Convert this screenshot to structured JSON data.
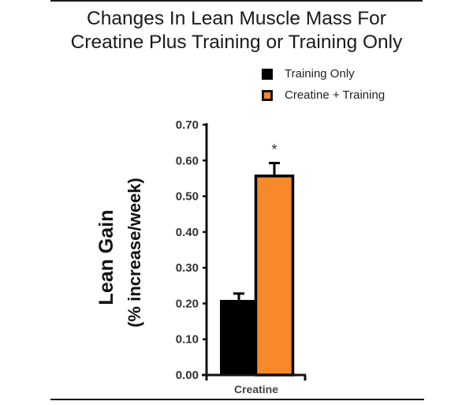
{
  "title_lines": [
    "Changes In Lean Muscle Mass For",
    "Creatine Plus Training or Training Only"
  ],
  "legend": [
    {
      "label": "Training Only",
      "color": "#000000"
    },
    {
      "label": "Creatine + Training",
      "color": "#F7892A"
    }
  ],
  "colors": {
    "training_only": "#000000",
    "creatine_training": "#F7892A",
    "axis": "#111111"
  },
  "chart_data": {
    "type": "bar",
    "title": "Changes In Lean Muscle Mass For Creatine Plus Training or Training Only",
    "categories": [
      "Creatine"
    ],
    "series": [
      {
        "name": "Training Only",
        "values": [
          0.21
        ],
        "error": [
          0.02
        ],
        "color": "#000000"
      },
      {
        "name": "Creatine + Training",
        "values": [
          0.56
        ],
        "error": [
          0.035
        ],
        "color": "#F7892A"
      }
    ],
    "xlabel": "",
    "ylabel": "Lean Gain (% increase/week)",
    "ylabel_lines": [
      "Lean Gain",
      "(% increase/week)"
    ],
    "ylim": [
      0,
      0.7
    ],
    "yticks": [
      "0.00",
      "0.10",
      "0.20",
      "0.30",
      "0.40",
      "0.50",
      "0.60",
      "0.70"
    ],
    "annotations": [
      {
        "text": "*",
        "target": "Creatine + Training"
      }
    ],
    "grid": false,
    "legend_position": "top-right"
  }
}
